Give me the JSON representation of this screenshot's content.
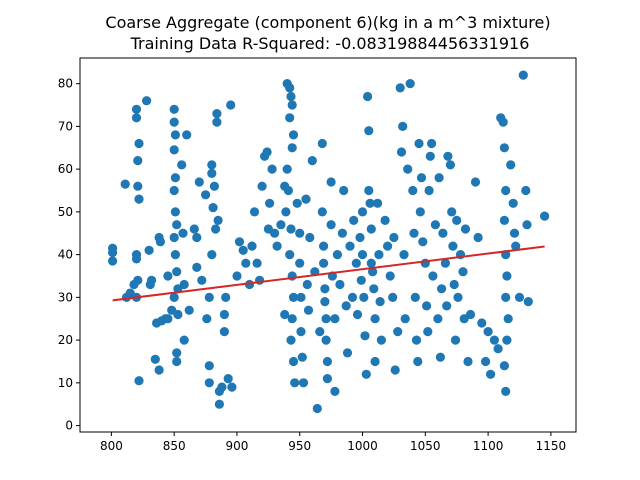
{
  "chart_data": {
    "type": "scatter",
    "title": "Coarse Aggregate  (component 6)(kg in a m^3 mixture)",
    "subtitle": "Training Data R-Squared: -0.08319884456331916",
    "xlabel": "",
    "ylabel": "",
    "xlim": [
      775,
      1170
    ],
    "ylim": [
      -1.5,
      86
    ],
    "x_ticks": [
      800,
      850,
      900,
      950,
      1000,
      1050,
      1100,
      1150
    ],
    "y_ticks": [
      0,
      10,
      20,
      30,
      40,
      50,
      60,
      70,
      80
    ],
    "grid": false,
    "colors": {
      "points": "#1f77b4",
      "fit_line": "#d62728"
    },
    "fit_line": {
      "x": [
        801,
        1145
      ],
      "y": [
        29.3,
        41.9
      ]
    },
    "series": [
      {
        "values": [
          [
            801,
            41.5
          ],
          [
            801,
            40.5
          ],
          [
            801,
            38.5
          ],
          [
            811,
            56.5
          ],
          [
            812,
            30
          ],
          [
            815,
            31
          ],
          [
            818,
            33
          ],
          [
            820,
            74
          ],
          [
            820,
            72
          ],
          [
            821,
            62
          ],
          [
            821,
            56
          ],
          [
            822,
            66
          ],
          [
            822,
            53
          ],
          [
            820,
            40
          ],
          [
            820,
            39
          ],
          [
            821,
            34
          ],
          [
            820,
            30
          ],
          [
            822,
            10.5
          ],
          [
            828,
            76
          ],
          [
            830,
            41
          ],
          [
            831,
            33
          ],
          [
            832,
            34
          ],
          [
            835,
            15.5
          ],
          [
            836,
            24
          ],
          [
            838,
            44
          ],
          [
            839,
            43
          ],
          [
            838,
            13
          ],
          [
            840,
            24.5
          ],
          [
            843,
            25
          ],
          [
            845,
            35
          ],
          [
            845,
            25
          ],
          [
            848,
            27
          ],
          [
            850,
            74
          ],
          [
            850,
            71
          ],
          [
            851,
            68
          ],
          [
            850,
            64.5
          ],
          [
            851,
            58
          ],
          [
            850,
            55
          ],
          [
            851,
            50
          ],
          [
            852,
            47
          ],
          [
            850,
            44
          ],
          [
            851,
            40
          ],
          [
            852,
            36
          ],
          [
            850,
            30
          ],
          [
            852,
            17
          ],
          [
            852,
            15
          ],
          [
            853,
            32
          ],
          [
            853,
            26
          ],
          [
            856,
            61
          ],
          [
            857,
            45
          ],
          [
            858,
            33
          ],
          [
            860,
            68
          ],
          [
            858,
            20
          ],
          [
            862,
            27
          ],
          [
            866,
            46
          ],
          [
            868,
            44
          ],
          [
            868,
            37
          ],
          [
            870,
            57
          ],
          [
            872,
            34
          ],
          [
            875,
            54
          ],
          [
            876,
            25
          ],
          [
            878,
            30
          ],
          [
            878,
            14
          ],
          [
            878,
            10
          ],
          [
            880,
            61
          ],
          [
            880,
            59
          ],
          [
            881,
            51
          ],
          [
            880,
            40
          ],
          [
            882,
            56
          ],
          [
            883,
            46
          ],
          [
            884,
            73
          ],
          [
            884,
            71
          ],
          [
            885,
            48
          ],
          [
            886,
            5
          ],
          [
            886,
            8
          ],
          [
            888,
            9
          ],
          [
            890,
            26
          ],
          [
            890,
            22
          ],
          [
            891,
            30
          ],
          [
            893,
            11
          ],
          [
            895,
            75
          ],
          [
            896,
            9
          ],
          [
            900,
            35
          ],
          [
            902,
            43
          ],
          [
            905,
            41
          ],
          [
            907,
            38
          ],
          [
            910,
            33
          ],
          [
            912,
            42
          ],
          [
            914,
            50
          ],
          [
            916,
            38
          ],
          [
            918,
            34
          ],
          [
            920,
            56
          ],
          [
            922,
            63
          ],
          [
            924,
            64
          ],
          [
            925,
            46
          ],
          [
            926,
            52
          ],
          [
            928,
            60
          ],
          [
            930,
            45
          ],
          [
            932,
            42
          ],
          [
            935,
            47
          ],
          [
            938,
            56
          ],
          [
            938,
            26
          ],
          [
            940,
            80
          ],
          [
            942,
            79
          ],
          [
            943,
            77
          ],
          [
            944,
            75
          ],
          [
            942,
            72
          ],
          [
            945,
            68
          ],
          [
            944,
            65
          ],
          [
            940,
            60
          ],
          [
            941,
            55
          ],
          [
            939,
            50
          ],
          [
            943,
            46
          ],
          [
            942,
            40
          ],
          [
            944,
            35
          ],
          [
            945,
            30
          ],
          [
            944,
            25
          ],
          [
            943,
            20
          ],
          [
            945,
            15
          ],
          [
            946,
            10
          ],
          [
            948,
            52
          ],
          [
            950,
            45
          ],
          [
            950,
            38
          ],
          [
            951,
            30
          ],
          [
            951,
            22
          ],
          [
            952,
            16
          ],
          [
            953,
            10
          ],
          [
            955,
            53
          ],
          [
            956,
            33
          ],
          [
            957,
            27
          ],
          [
            958,
            44
          ],
          [
            960,
            62
          ],
          [
            962,
            36
          ],
          [
            964,
            4
          ],
          [
            966,
            22
          ],
          [
            968,
            66
          ],
          [
            968,
            50
          ],
          [
            969,
            42
          ],
          [
            969,
            38
          ],
          [
            970,
            32
          ],
          [
            970,
            29
          ],
          [
            971,
            25
          ],
          [
            971,
            20
          ],
          [
            972,
            15
          ],
          [
            972,
            11
          ],
          [
            975,
            57
          ],
          [
            975,
            47
          ],
          [
            976,
            35
          ],
          [
            978,
            25
          ],
          [
            978,
            8
          ],
          [
            980,
            40
          ],
          [
            982,
            33
          ],
          [
            984,
            45
          ],
          [
            985,
            55
          ],
          [
            987,
            28
          ],
          [
            988,
            17
          ],
          [
            990,
            42
          ],
          [
            992,
            30
          ],
          [
            993,
            48
          ],
          [
            995,
            38
          ],
          [
            996,
            26
          ],
          [
            998,
            44
          ],
          [
            999,
            34
          ],
          [
            1000,
            50
          ],
          [
            1000,
            40
          ],
          [
            1001,
            30
          ],
          [
            1002,
            21
          ],
          [
            1003,
            12
          ],
          [
            1004,
            77
          ],
          [
            1005,
            69
          ],
          [
            1005,
            55
          ],
          [
            1006,
            52
          ],
          [
            1007,
            46
          ],
          [
            1007,
            38
          ],
          [
            1008,
            36
          ],
          [
            1009,
            32
          ],
          [
            1010,
            25
          ],
          [
            1010,
            15
          ],
          [
            1012,
            52
          ],
          [
            1013,
            40
          ],
          [
            1014,
            29
          ],
          [
            1015,
            20
          ],
          [
            1018,
            48
          ],
          [
            1020,
            42
          ],
          [
            1022,
            35
          ],
          [
            1024,
            30
          ],
          [
            1025,
            44
          ],
          [
            1026,
            13
          ],
          [
            1028,
            22
          ],
          [
            1030,
            79
          ],
          [
            1031,
            64
          ],
          [
            1032,
            70
          ],
          [
            1033,
            40
          ],
          [
            1034,
            25
          ],
          [
            1036,
            60
          ],
          [
            1038,
            80
          ],
          [
            1040,
            55
          ],
          [
            1041,
            45
          ],
          [
            1042,
            30
          ],
          [
            1043,
            20
          ],
          [
            1044,
            15
          ],
          [
            1045,
            66
          ],
          [
            1046,
            50
          ],
          [
            1047,
            58
          ],
          [
            1048,
            43
          ],
          [
            1050,
            38
          ],
          [
            1051,
            28
          ],
          [
            1052,
            22
          ],
          [
            1053,
            55
          ],
          [
            1054,
            63
          ],
          [
            1055,
            66
          ],
          [
            1056,
            35
          ],
          [
            1058,
            47
          ],
          [
            1060,
            25
          ],
          [
            1061,
            58
          ],
          [
            1062,
            16
          ],
          [
            1063,
            32
          ],
          [
            1064,
            45
          ],
          [
            1066,
            38
          ],
          [
            1067,
            28
          ],
          [
            1068,
            63
          ],
          [
            1070,
            61
          ],
          [
            1071,
            50
          ],
          [
            1072,
            42
          ],
          [
            1073,
            33
          ],
          [
            1074,
            20
          ],
          [
            1075,
            48
          ],
          [
            1076,
            30
          ],
          [
            1078,
            40
          ],
          [
            1080,
            36
          ],
          [
            1081,
            25
          ],
          [
            1082,
            46
          ],
          [
            1084,
            15
          ],
          [
            1086,
            26
          ],
          [
            1090,
            57
          ],
          [
            1092,
            44
          ],
          [
            1095,
            24
          ],
          [
            1098,
            15
          ],
          [
            1100,
            22
          ],
          [
            1102,
            12
          ],
          [
            1105,
            20
          ],
          [
            1108,
            18
          ],
          [
            1110,
            72
          ],
          [
            1112,
            71
          ],
          [
            1113,
            65
          ],
          [
            1114,
            55
          ],
          [
            1113,
            48
          ],
          [
            1114,
            40
          ],
          [
            1115,
            35
          ],
          [
            1114,
            30
          ],
          [
            1116,
            25
          ],
          [
            1115,
            20
          ],
          [
            1113,
            14
          ],
          [
            1114,
            8
          ],
          [
            1118,
            61
          ],
          [
            1120,
            52
          ],
          [
            1121,
            45
          ],
          [
            1122,
            42
          ],
          [
            1125,
            30
          ],
          [
            1128,
            82
          ],
          [
            1130,
            55
          ],
          [
            1131,
            47
          ],
          [
            1132,
            29
          ],
          [
            1145,
            49
          ]
        ]
      }
    ]
  }
}
